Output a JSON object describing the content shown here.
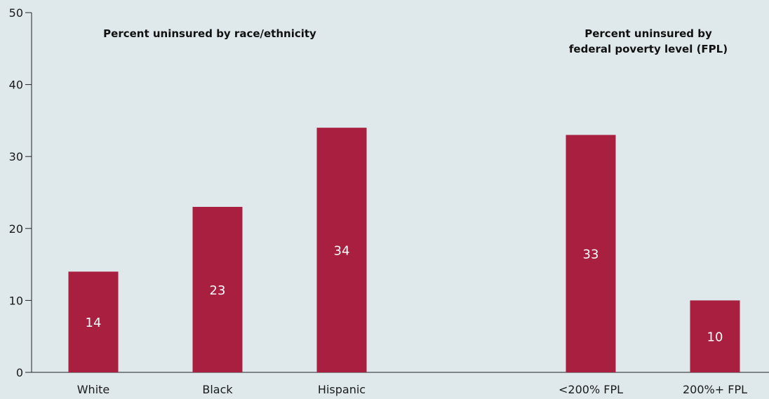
{
  "chart_data": {
    "type": "bar",
    "bar_color": "#a81f3f",
    "background_color": "#dfe9ec",
    "ylim": [
      0,
      50
    ],
    "yticks": [
      0,
      10,
      20,
      30,
      40,
      50
    ],
    "grid": false,
    "groups": [
      {
        "title_lines": [
          "Percent uninsured by race/ethnicity"
        ],
        "categories": [
          "White",
          "Black",
          "Hispanic"
        ],
        "values": [
          14,
          23,
          34
        ]
      },
      {
        "title_lines": [
          "Percent uninsured by",
          "federal poverty level (FPL)"
        ],
        "categories": [
          "<200% FPL",
          "200%+ FPL"
        ],
        "values": [
          33,
          10
        ]
      }
    ]
  }
}
